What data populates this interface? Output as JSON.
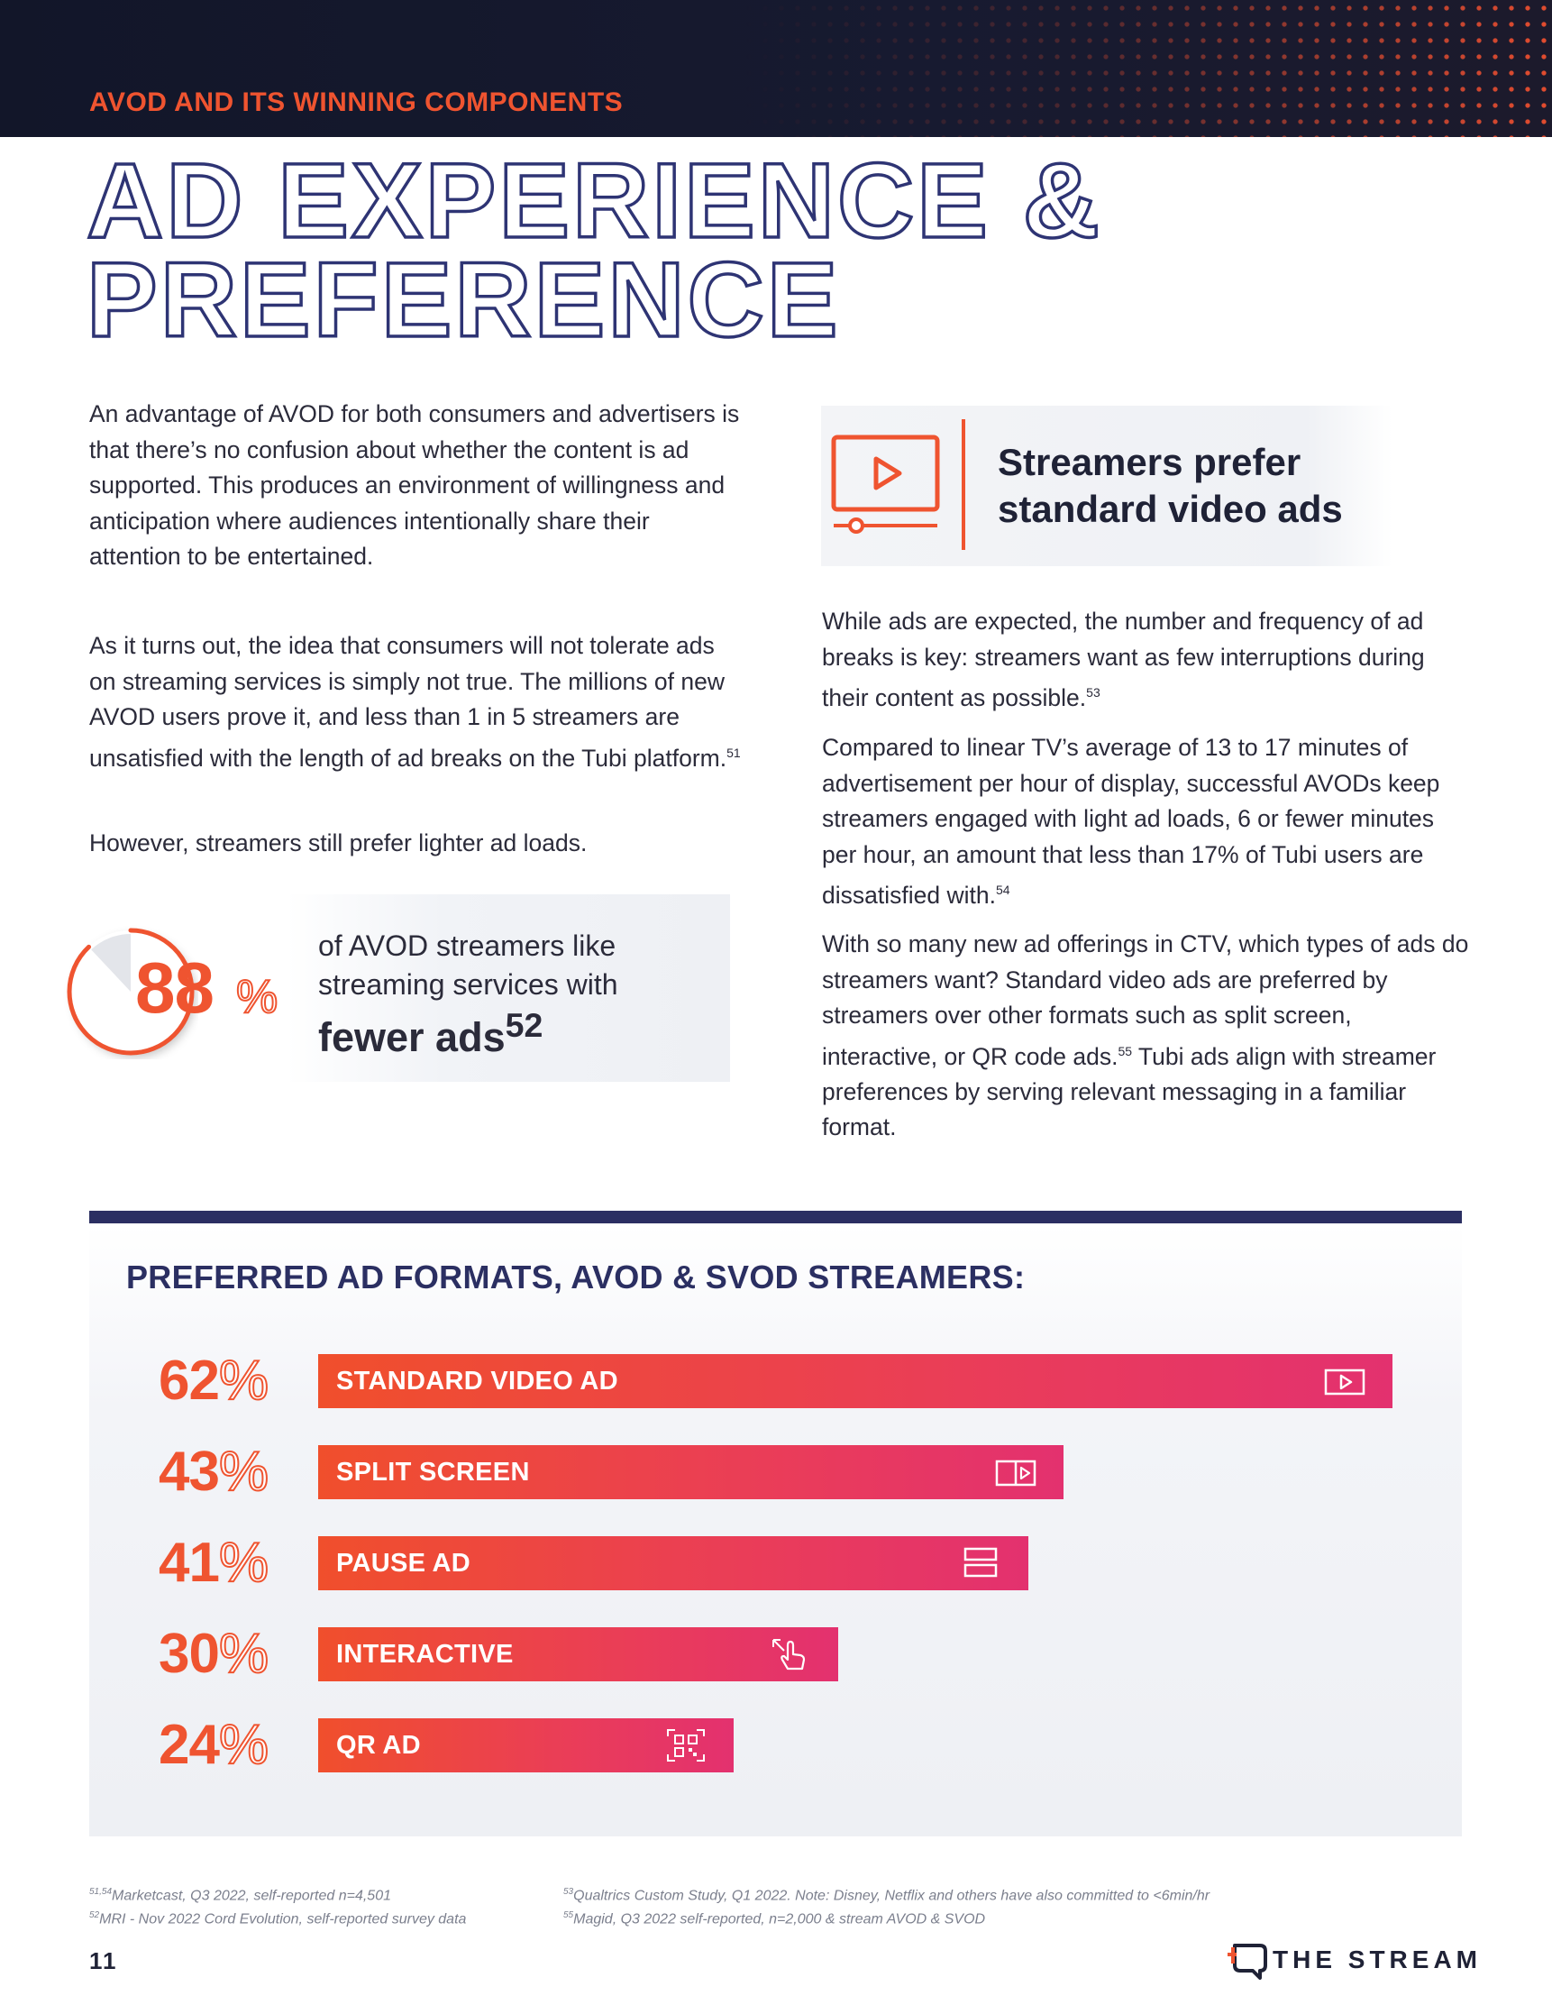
{
  "header": {
    "kicker": "AVOD AND ITS WINNING COMPONENTS",
    "title_line1": "AD EXPERIENCE &",
    "title_line2": "PREFERENCE"
  },
  "left_column": {
    "p1": "An advantage of AVOD for both consumers and advertisers is that there’s no confusion about whether the content is ad supported. This produces an environment of willingness and anticipation where audiences intentionally share their attention to be entertained.",
    "p2": "As it turns out, the idea that consumers will not tolerate ads on streaming services is simply not true. The millions of new AVOD users prove it, and less than 1 in 5 streamers are unsatisfied with the length of ad breaks on the Tubi platform.",
    "p2_ref": "51",
    "p3": "However, streamers still prefer lighter ad loads."
  },
  "stat": {
    "number": "88",
    "percent_sign": "%",
    "value_fraction": 0.88,
    "line1": "of AVOD streamers like",
    "line2": "streaming services with",
    "emphasis": "fewer ads",
    "ref": "52",
    "accent_color": "#ef5430"
  },
  "callout": {
    "icon": "video-play-icon",
    "title_line1": "Streamers prefer",
    "title_line2": "standard video ads"
  },
  "right_column": {
    "p1": "While ads are expected, the number and frequency of ad breaks is key: streamers want as few interruptions during their content as possible.",
    "p1_ref": "53",
    "p2": "Compared to linear TV’s average of 13 to 17 minutes of advertisement per hour of display, successful AVODs keep streamers engaged with light ad loads, 6 or fewer minutes per hour, an amount that less than 17% of Tubi users are dissatisfied with.",
    "p2_ref": "54",
    "p3a": "With so many new ad offerings in CTV, which types of ads do streamers want? Standard video ads are preferred by streamers over other formats such as split screen, interactive, or QR code ads.",
    "p3_ref": "55",
    "p3b": " Tubi ads align with streamer preferences by serving relevant messaging in a familiar format."
  },
  "chart_data": {
    "type": "bar",
    "orientation": "horizontal",
    "title": "PREFERRED AD FORMATS, AVOD & SVOD STREAMERS:",
    "categories": [
      "STANDARD VIDEO AD",
      "SPLIT SCREEN",
      "PAUSE AD",
      "INTERACTIVE",
      "QR AD"
    ],
    "values": [
      62,
      43,
      41,
      30,
      24
    ],
    "value_labels": [
      "62",
      "43",
      "41",
      "30",
      "24"
    ],
    "unit": "%",
    "icons": [
      "video-play-icon",
      "split-screen-icon",
      "pause-ad-icon",
      "tap-hand-icon",
      "qr-code-icon"
    ],
    "colors": {
      "bar_start": "#f04f2c",
      "bar_end": "#e3316f",
      "label": "#ef5430"
    }
  },
  "footnotes": {
    "left1_ref": "51,54",
    "left1": "Marketcast, Q3 2022, self-reported n=4,501",
    "left2_ref": "52",
    "left2": "MRI - Nov 2022 Cord Evolution, self-reported survey data",
    "right1_ref": "53",
    "right1": "Qualtrics Custom Study, Q1 2022. Note: Disney, Netflix and others have also committed to <6min/hr",
    "right2_ref": "55",
    "right2": "Magid, Q3 2022 self-reported, n=2,000 & stream AVOD & SVOD"
  },
  "footer": {
    "page_number": "11",
    "brand": "THE STREAM",
    "brand_icon": "chat-bubble-logo-icon"
  }
}
